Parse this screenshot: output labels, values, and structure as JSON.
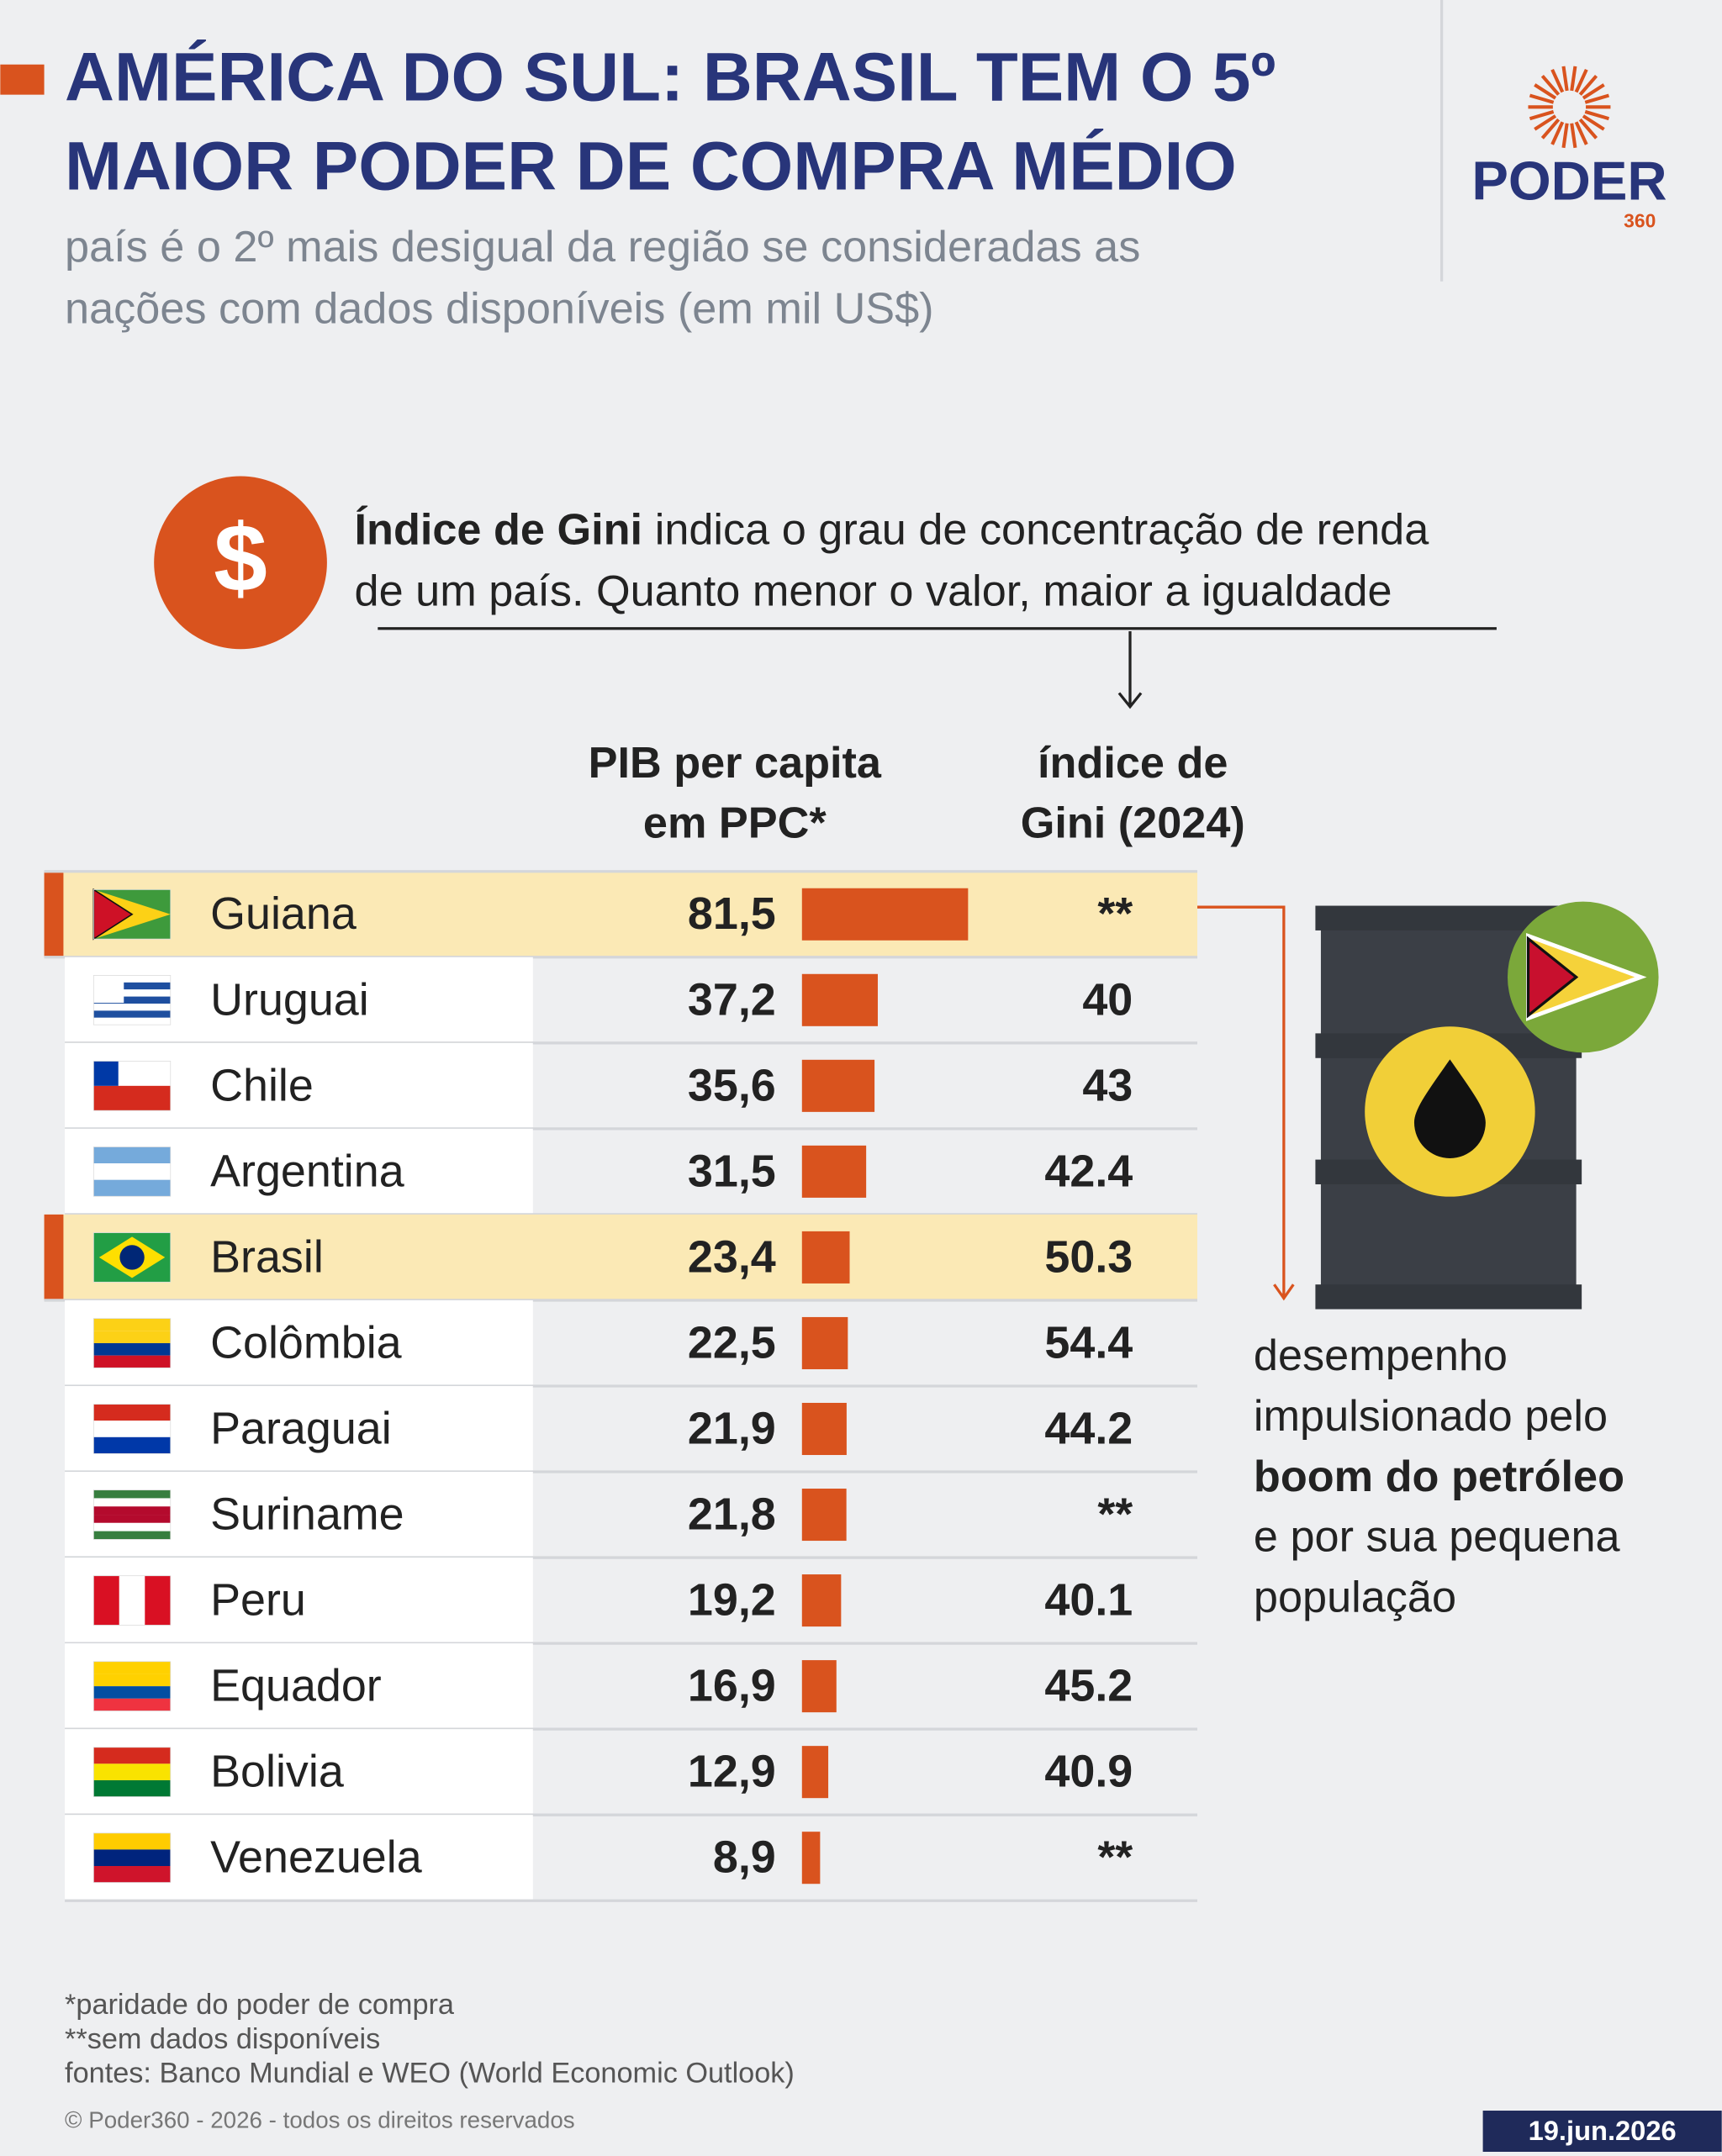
{
  "header": {
    "title": [
      "AMÉRICA DO SUL: BRASIL TEM O 5º",
      "MAIOR PODER DE COMPRA MÉDIO"
    ],
    "subtitle": [
      "país é o 2º mais desigual da região se consideradas as",
      "nações com dados disponíveis (em mil US$)"
    ],
    "logo": "PODER",
    "logo_number": "360"
  },
  "gini_note": {
    "icon_symbol": "$",
    "bold": "Índice de Gini",
    "text_1": "indica o grau de concentração de renda",
    "text_2": "de um país. Quanto menor o valor, maior a igualdade"
  },
  "chart_data": {
    "type": "bar",
    "column_headers": {
      "values": [
        "PIB per capita",
        "em PPC*"
      ],
      "gini": [
        "índice de",
        "Gini  (2024)"
      ]
    },
    "categories": [
      "Guiana",
      "Uruguai",
      "Chile",
      "Argentina",
      "Brasil",
      "Colômbia",
      "Paraguai",
      "Suriname",
      "Peru",
      "Equador",
      "Bolivia",
      "Venezuela"
    ],
    "values": [
      81.5,
      37.2,
      35.6,
      31.5,
      23.4,
      22.5,
      21.9,
      21.8,
      19.2,
      16.9,
      12.9,
      8.9
    ],
    "value_labels": [
      "81,5",
      "37,2",
      "35,6",
      "31,5",
      "23,4",
      "22,5",
      "21,9",
      "21,8",
      "19,2",
      "16,9",
      "12,9",
      "8,9"
    ],
    "gini": [
      "**",
      "40",
      "43",
      "42.4",
      "50.3",
      "54.4",
      "44.2",
      "**",
      "40.1",
      "45.2",
      "40.9",
      "**"
    ],
    "color": "#d9531e",
    "highlighted": [
      0,
      4
    ]
  },
  "annotation": [
    "desempenho",
    "impulsionado pelo",
    "boom do petróleo",
    "e por sua pequena",
    "população"
  ],
  "footer": {
    "notes": [
      "*paridade do poder de compra",
      "**sem dados disponíveis",
      "fontes: Banco Mundial e WEO (World Economic Outlook)"
    ],
    "copyright": "© Poder360 - 2026 - todos os direitos reservados",
    "date": "19.jun.2026"
  }
}
